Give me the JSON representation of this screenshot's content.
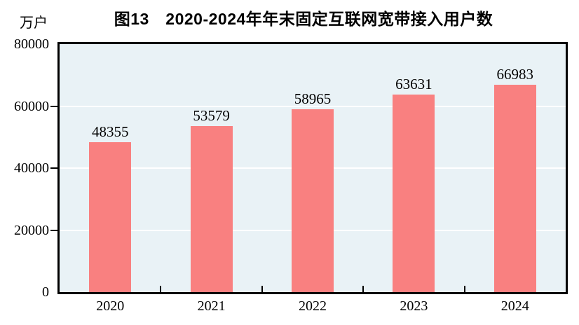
{
  "figure": {
    "title": "图13　2020-2024年年末固定互联网宽带接入用户数",
    "unit_label": "万户"
  },
  "chart_data": {
    "type": "bar",
    "title": "图13　2020-2024年年末固定互联网宽带接入用户数",
    "xlabel": "",
    "ylabel": "万户",
    "categories": [
      "2020",
      "2021",
      "2022",
      "2023",
      "2024"
    ],
    "values": [
      48355,
      53579,
      58965,
      63631,
      66983
    ],
    "ylim": [
      0,
      80000
    ],
    "yticks": [
      0,
      20000,
      40000,
      60000,
      80000
    ],
    "grid": true,
    "legend": false,
    "colors": {
      "bar": "#F98080",
      "plot_background": "#E9F2F6",
      "gridline": "#FFFFFF",
      "axis": "#000000",
      "text": "#000000",
      "page_background": "#FFFFFF"
    }
  }
}
